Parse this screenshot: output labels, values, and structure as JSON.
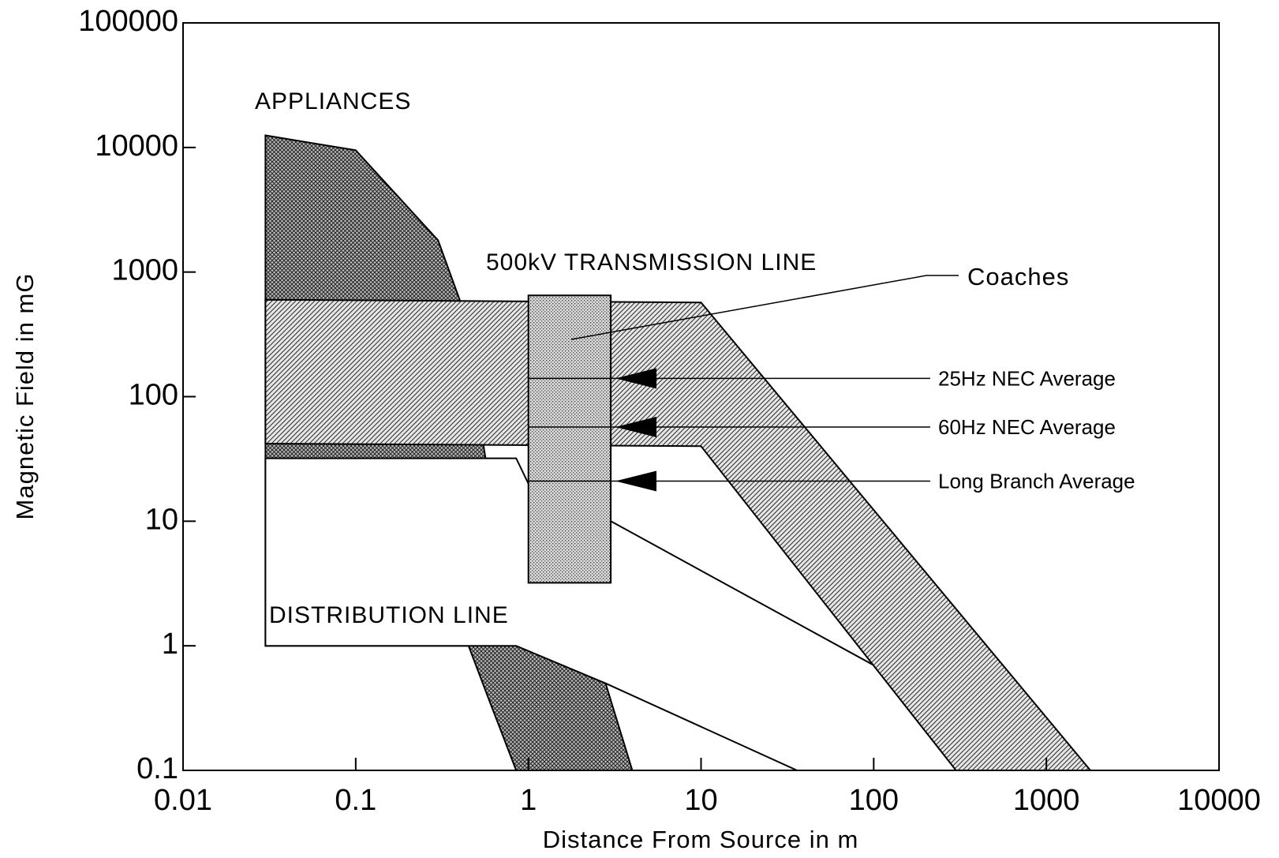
{
  "chart_data": {
    "type": "region",
    "x_label": "Distance From Source in m",
    "y_label": "Magnetic Field in mG",
    "xscale": "log",
    "yscale": "log",
    "xlim": [
      0.01,
      10000
    ],
    "ylim": [
      0.1,
      100000
    ],
    "xticks": [
      0.01,
      0.1,
      1,
      10,
      100,
      1000,
      10000
    ],
    "yticks": [
      0.1,
      1,
      10,
      100,
      1000,
      10000,
      100000
    ],
    "series": [
      {
        "name": "APPLIANCES",
        "fill": "crosshatch",
        "x": [
          0.03,
          0.1,
          0.3,
          0.4,
          0.85,
          2.8,
          4,
          0.85,
          0.6,
          0.45,
          0.03
        ],
        "values": [
          12500,
          9500,
          1800,
          600,
          1,
          0.5,
          0.1,
          0.1,
          0.35,
          1,
          1
        ]
      },
      {
        "name": "DISTRIBUTION LINE",
        "fill": "white",
        "x": [
          0.03,
          0.85,
          1,
          3,
          110,
          300,
          36,
          2.8,
          0.85,
          0.03
        ],
        "values": [
          32,
          32,
          20,
          10,
          0.65,
          0.1,
          0.1,
          0.5,
          1,
          1
        ]
      },
      {
        "name": "500kV TRANSMISSION LINE",
        "fill": "hatch",
        "x": [
          0.03,
          10,
          1800,
          300,
          10,
          0.03
        ],
        "values": [
          600,
          570,
          0.1,
          0.1,
          40,
          42
        ]
      },
      {
        "name": "Coaches",
        "fill": "dots",
        "x": [
          1,
          3,
          3,
          1
        ],
        "values": [
          650,
          650,
          3.2,
          3.2
        ]
      }
    ],
    "reference_lines": [
      {
        "name": "25Hz NEC Average",
        "value": 140
      },
      {
        "name": "60Hz NEC Average",
        "value": 57
      },
      {
        "name": "Long Branch Average",
        "value": 21
      }
    ]
  }
}
